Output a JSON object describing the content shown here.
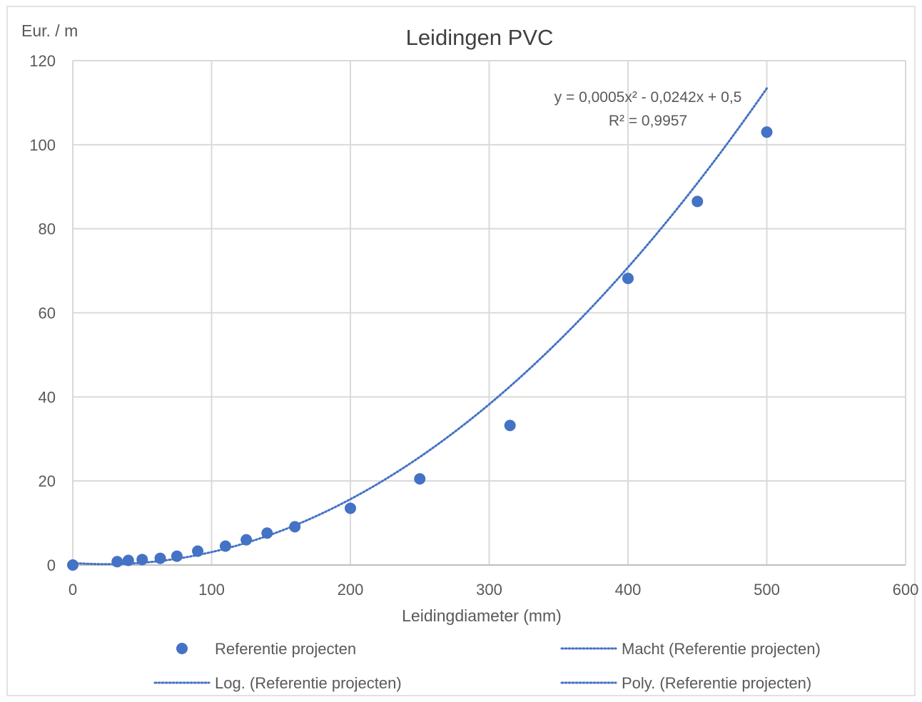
{
  "chart_data": {
    "type": "scatter",
    "title": "Leidingen PVC",
    "xlabel": "Leidingdiameter (mm)",
    "ylabel": "Eur. / m",
    "xlim": [
      0,
      600
    ],
    "ylim": [
      0,
      120
    ],
    "x_ticks": [
      0,
      100,
      200,
      300,
      400,
      500,
      600
    ],
    "y_ticks": [
      0,
      20,
      40,
      60,
      80,
      100,
      120
    ],
    "grid": true,
    "legend_position": "bottom",
    "series": [
      {
        "name": "Referentie projecten",
        "kind": "marker",
        "color": "#4472C4",
        "points": [
          {
            "x": 0,
            "y": 0
          },
          {
            "x": 32,
            "y": 0.8
          },
          {
            "x": 40,
            "y": 1.1
          },
          {
            "x": 50,
            "y": 1.3
          },
          {
            "x": 63,
            "y": 1.6
          },
          {
            "x": 75,
            "y": 2.1
          },
          {
            "x": 90,
            "y": 3.3
          },
          {
            "x": 110,
            "y": 4.5
          },
          {
            "x": 125,
            "y": 6.0
          },
          {
            "x": 140,
            "y": 7.6
          },
          {
            "x": 160,
            "y": 9.1
          },
          {
            "x": 200,
            "y": 13.5
          },
          {
            "x": 250,
            "y": 20.5
          },
          {
            "x": 315,
            "y": 33.2
          },
          {
            "x": 400,
            "y": 68.2
          },
          {
            "x": 450,
            "y": 86.5
          },
          {
            "x": 500,
            "y": 103
          }
        ]
      },
      {
        "name": "Macht (Referentie projecten)",
        "kind": "trendline",
        "color": "#4472C4"
      },
      {
        "name": "Log. (Referentie projecten)",
        "kind": "trendline",
        "color": "#4472C4"
      },
      {
        "name": "Poly. (Referentie projecten)",
        "kind": "trendline",
        "color": "#4472C4",
        "coefficients": [
          0.0005,
          -0.0242,
          0.5
        ],
        "domain": [
          0,
          500
        ]
      }
    ],
    "annotations": [
      {
        "text": "y = 0,0005x² - 0,0242x + 0,5",
        "x": 300,
        "y": 110.5
      },
      {
        "text": "R² = 0,9957",
        "x": 300,
        "y": 105
      }
    ]
  }
}
